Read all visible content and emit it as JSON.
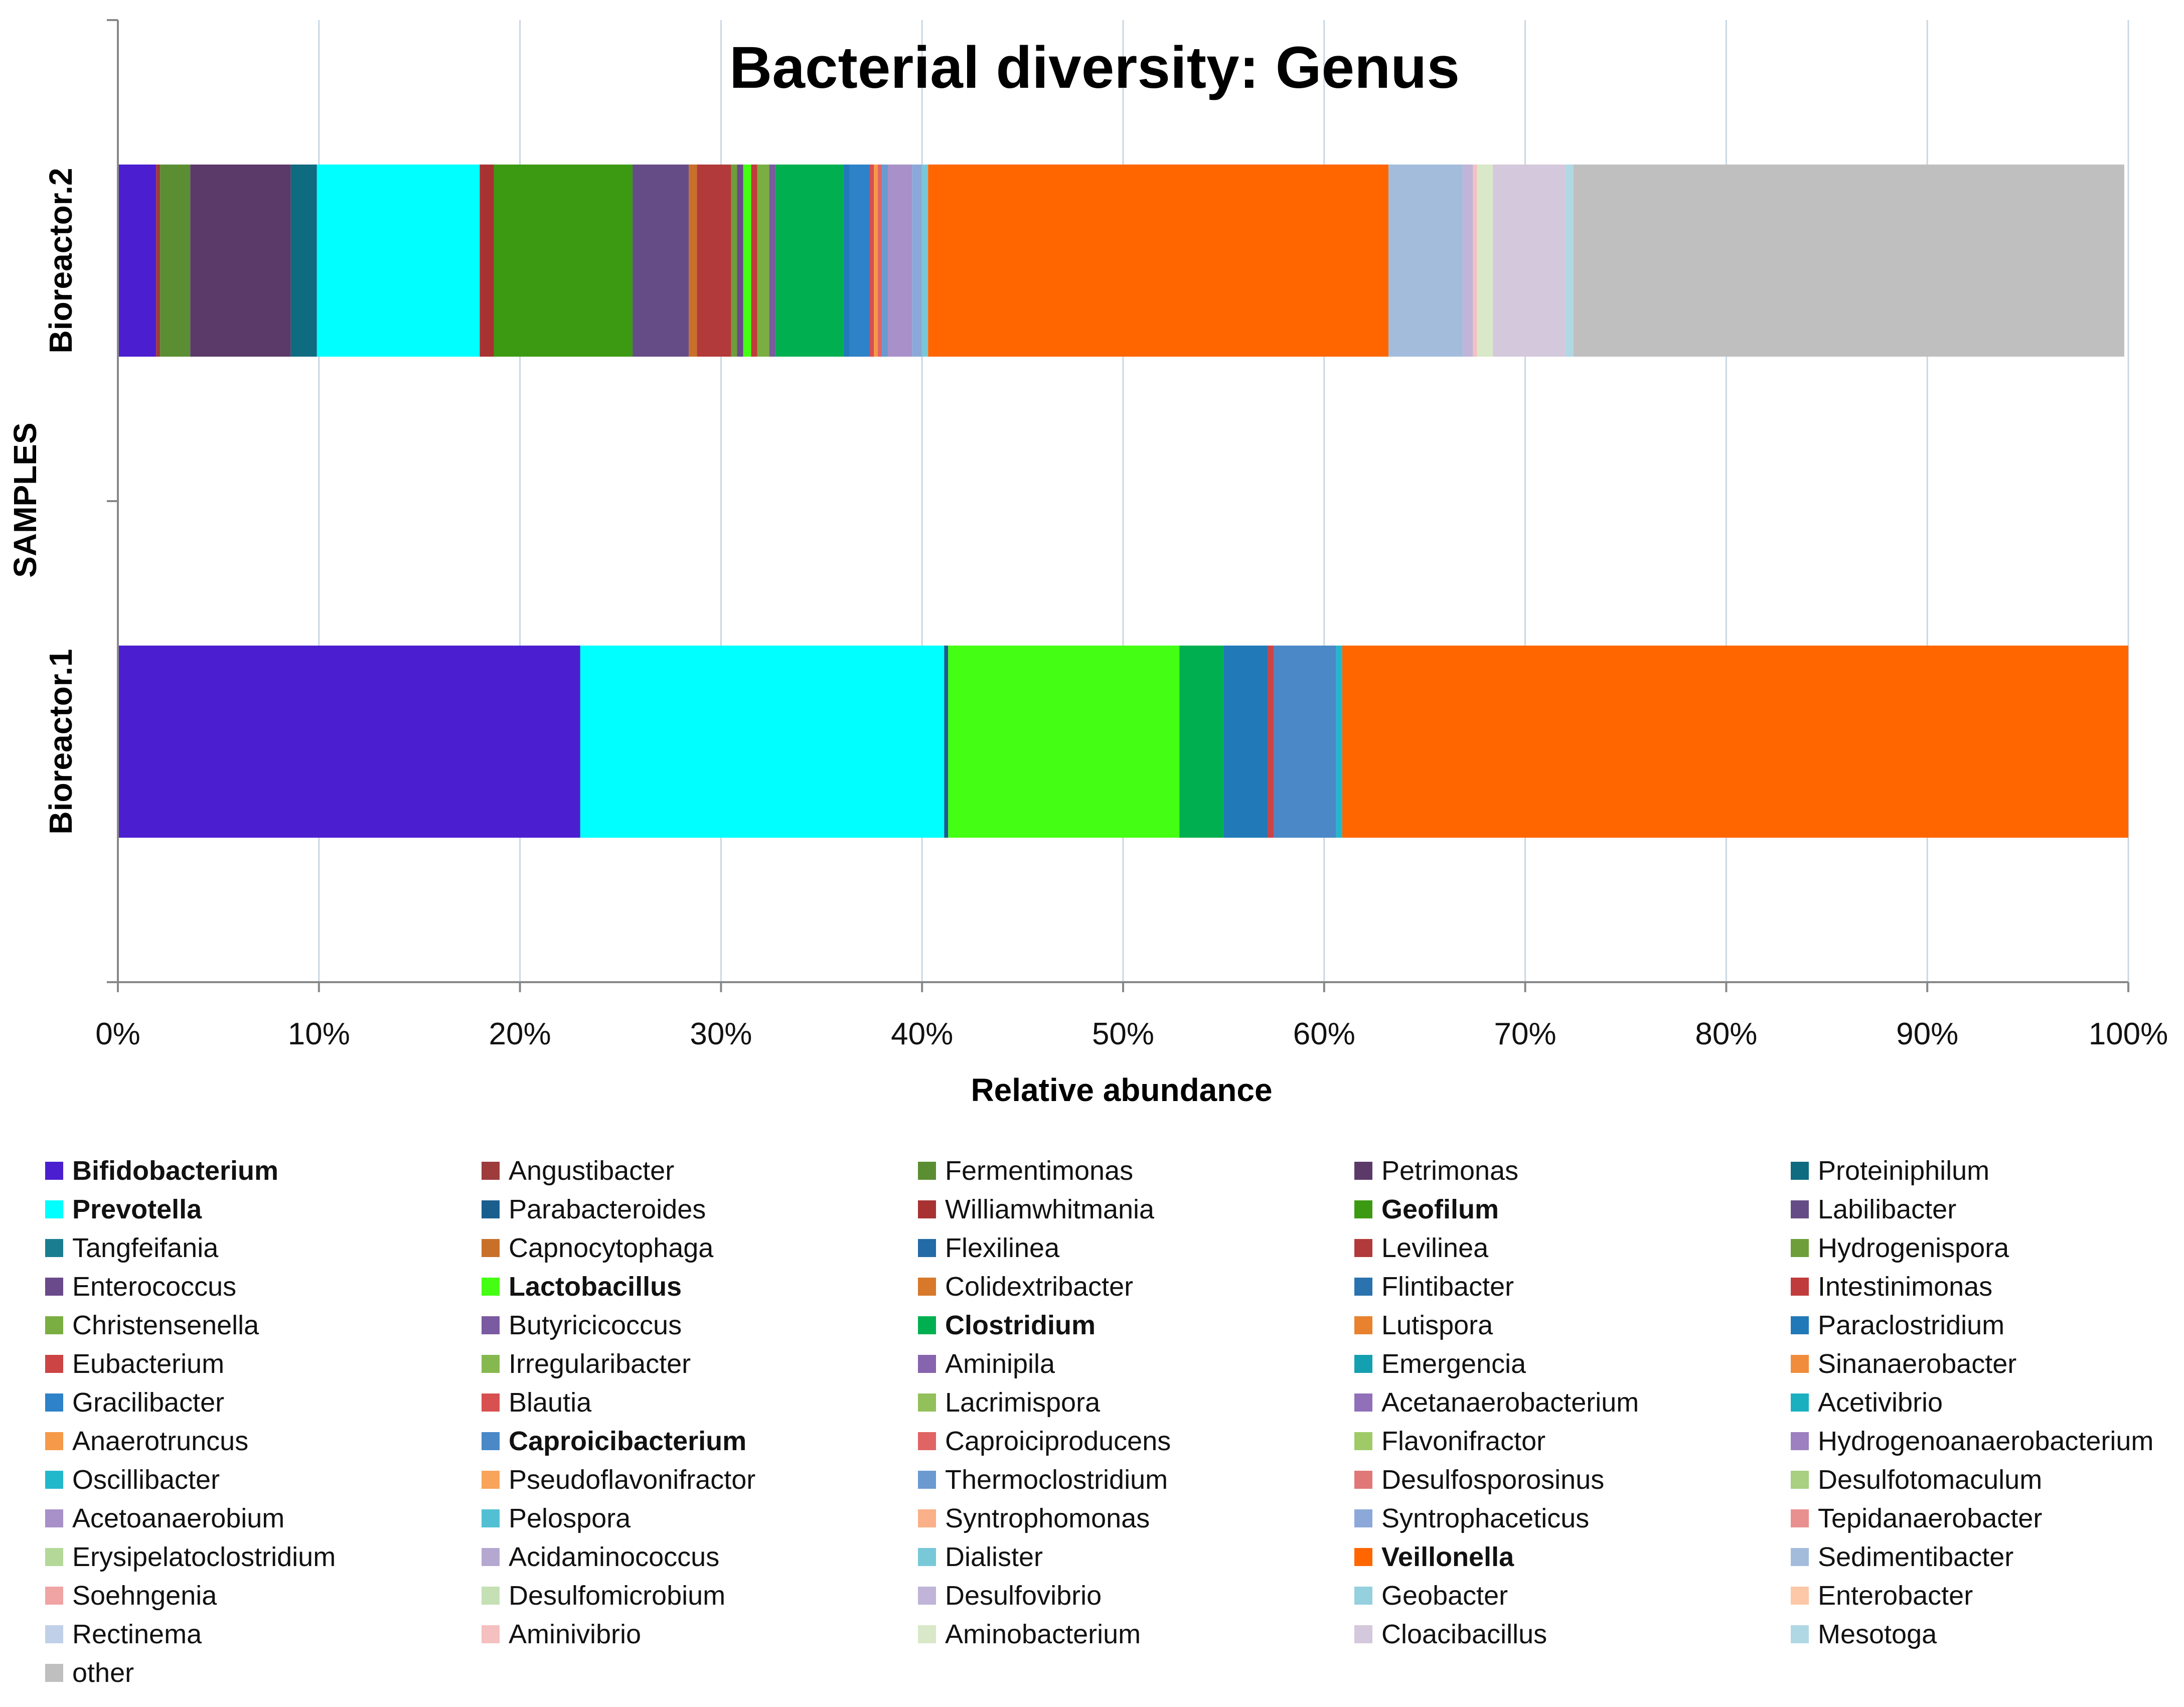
{
  "chart_data": {
    "type": "bar",
    "orientation": "horizontal",
    "stacked": "100%",
    "title": "Bacterial diversity: Genus",
    "xlabel": "Relative abundance",
    "ylabel": "SAMPLES",
    "xlim": [
      0,
      100
    ],
    "x_ticks": [
      "0%",
      "10%",
      "20%",
      "30%",
      "40%",
      "50%",
      "60%",
      "70%",
      "80%",
      "90%",
      "100%"
    ],
    "grid": "vertical",
    "legend_position": "bottom",
    "categories": [
      "Bioreactor.2",
      "Bioreactor.1"
    ],
    "series": [
      {
        "name": "Bifidobacterium",
        "color": "#4B1FD0",
        "bold": true,
        "values": [
          1.9,
          23.0
        ]
      },
      {
        "name": "Angustibacter",
        "color": "#9E3B3B",
        "bold": false,
        "values": [
          0.2,
          0
        ]
      },
      {
        "name": "Fermentimonas",
        "color": "#5B8E32",
        "bold": false,
        "values": [
          1.5,
          0
        ]
      },
      {
        "name": "Petrimonas",
        "color": "#5B3A6A",
        "bold": false,
        "values": [
          5.0,
          0
        ]
      },
      {
        "name": "Proteiniphilum",
        "color": "#0F6B80",
        "bold": false,
        "values": [
          1.3,
          0
        ]
      },
      {
        "name": "Prevotella",
        "color": "#00FFFF",
        "bold": true,
        "values": [
          8.1,
          18.1
        ]
      },
      {
        "name": "Parabacteroides",
        "color": "#1A5E8E",
        "bold": false,
        "values": [
          0,
          0.2
        ]
      },
      {
        "name": "Williamwhitmania",
        "color": "#A83232",
        "bold": false,
        "values": [
          0.7,
          0
        ]
      },
      {
        "name": "Geofilum",
        "color": "#3C9A12",
        "bold": true,
        "values": [
          6.9,
          0
        ]
      },
      {
        "name": "Labilibacter",
        "color": "#664C86",
        "bold": false,
        "values": [
          2.8,
          0
        ]
      },
      {
        "name": "Tangfeifania",
        "color": "#1B7E8E",
        "bold": false,
        "values": [
          0,
          0
        ]
      },
      {
        "name": "Capnocytophaga",
        "color": "#C8702A",
        "bold": false,
        "values": [
          0.4,
          0
        ]
      },
      {
        "name": "Flexilinea",
        "color": "#236BA6",
        "bold": false,
        "values": [
          0,
          0
        ]
      },
      {
        "name": "Levilinea",
        "color": "#B23A3A",
        "bold": false,
        "values": [
          1.7,
          0
        ]
      },
      {
        "name": "Hydrogenispora",
        "color": "#6E9E3A",
        "bold": false,
        "values": [
          0.3,
          0
        ]
      },
      {
        "name": "Enterococcus",
        "color": "#6A4A8A",
        "bold": false,
        "values": [
          0.3,
          0
        ]
      },
      {
        "name": "Lactobacillus",
        "color": "#44FF14",
        "bold": true,
        "values": [
          0.4,
          11.5
        ]
      },
      {
        "name": "Colidextribacter",
        "color": "#D8782A",
        "bold": false,
        "values": [
          0,
          0
        ]
      },
      {
        "name": "Flintibacter",
        "color": "#2A73AE",
        "bold": false,
        "values": [
          0,
          0
        ]
      },
      {
        "name": "Intestinimonas",
        "color": "#C03C3C",
        "bold": false,
        "values": [
          0.3,
          0
        ]
      },
      {
        "name": "Christensenella",
        "color": "#7AAE42",
        "bold": false,
        "values": [
          0.6,
          0
        ]
      },
      {
        "name": "Butyricicoccus",
        "color": "#7A5AA0",
        "bold": false,
        "values": [
          0.3,
          0
        ]
      },
      {
        "name": "Clostridium",
        "color": "#00B050",
        "bold": true,
        "values": [
          3.4,
          2.2
        ]
      },
      {
        "name": "Lutispora",
        "color": "#E8822F",
        "bold": false,
        "values": [
          0,
          0
        ]
      },
      {
        "name": "Paraclostridium",
        "color": "#2279B8",
        "bold": false,
        "values": [
          0.3,
          2.2
        ]
      },
      {
        "name": "Eubacterium",
        "color": "#CC4444",
        "bold": false,
        "values": [
          0,
          0.3
        ]
      },
      {
        "name": "Irregularibacter",
        "color": "#86B850",
        "bold": false,
        "values": [
          0,
          0
        ]
      },
      {
        "name": "Aminipila",
        "color": "#8664AE",
        "bold": false,
        "values": [
          0,
          0
        ]
      },
      {
        "name": "Emergencia",
        "color": "#14A0B0",
        "bold": false,
        "values": [
          0,
          0
        ]
      },
      {
        "name": "Sinanaerobacter",
        "color": "#F08C3C",
        "bold": false,
        "values": [
          0,
          0
        ]
      },
      {
        "name": "Gracilibacter",
        "color": "#2E82C8",
        "bold": false,
        "values": [
          1.0,
          0
        ]
      },
      {
        "name": "Blautia",
        "color": "#D85050",
        "bold": false,
        "values": [
          0.2,
          0
        ]
      },
      {
        "name": "Lacrimispora",
        "color": "#92C05A",
        "bold": false,
        "values": [
          0,
          0
        ]
      },
      {
        "name": "Acetanaerobacterium",
        "color": "#9070B8",
        "bold": false,
        "values": [
          0,
          0
        ]
      },
      {
        "name": "Acetivibrio",
        "color": "#1AB0C0",
        "bold": false,
        "values": [
          0,
          0
        ]
      },
      {
        "name": "Anaerotruncus",
        "color": "#F59A48",
        "bold": false,
        "values": [
          0.2,
          0
        ]
      },
      {
        "name": "Caproicibacterium",
        "color": "#4A88C8",
        "bold": true,
        "values": [
          0,
          3.1
        ]
      },
      {
        "name": "Caproiciproducens",
        "color": "#E06464",
        "bold": false,
        "values": [
          0.2,
          0
        ]
      },
      {
        "name": "Flavonifractor",
        "color": "#A0CA68",
        "bold": false,
        "values": [
          0,
          0
        ]
      },
      {
        "name": "Hydrogenoanaerobacterium",
        "color": "#9C80C0",
        "bold": false,
        "values": [
          0,
          0
        ]
      },
      {
        "name": "Oscillibacter",
        "color": "#22B8CC",
        "bold": false,
        "values": [
          0,
          0.3
        ]
      },
      {
        "name": "Pseudoflavonifractor",
        "color": "#F8A45A",
        "bold": false,
        "values": [
          0,
          0
        ]
      },
      {
        "name": "Thermoclostridium",
        "color": "#6A9AD0",
        "bold": false,
        "values": [
          0.3,
          0
        ]
      },
      {
        "name": "Desulfosporosinus",
        "color": "#E07878",
        "bold": false,
        "values": [
          0,
          0
        ]
      },
      {
        "name": "Desulfotomaculum",
        "color": "#A8D080",
        "bold": false,
        "values": [
          0,
          0
        ]
      },
      {
        "name": "Acetoanaerobium",
        "color": "#A890C8",
        "bold": false,
        "values": [
          1.2,
          0
        ]
      },
      {
        "name": "Pelospora",
        "color": "#52C0D2",
        "bold": false,
        "values": [
          0,
          0
        ]
      },
      {
        "name": "Syntrophomonas",
        "color": "#FAB088",
        "bold": false,
        "values": [
          0,
          0
        ]
      },
      {
        "name": "Syntrophaceticus",
        "color": "#8CA8D8",
        "bold": false,
        "values": [
          0.5,
          0
        ]
      },
      {
        "name": "Tepidanaerobacter",
        "color": "#E89090",
        "bold": false,
        "values": [
          0,
          0
        ]
      },
      {
        "name": "Erysipelatoclostridium",
        "color": "#B4D898",
        "bold": false,
        "values": [
          0,
          0
        ]
      },
      {
        "name": "Acidaminococcus",
        "color": "#B4A8D0",
        "bold": false,
        "values": [
          0,
          0
        ]
      },
      {
        "name": "Dialister",
        "color": "#78C8D8",
        "bold": false,
        "values": [
          0.3,
          0
        ]
      },
      {
        "name": "Veillonella",
        "color": "#FF6600",
        "bold": true,
        "values": [
          22.9,
          39.1
        ]
      },
      {
        "name": "Sedimentibacter",
        "color": "#A4BCDC",
        "bold": false,
        "values": [
          3.7,
          0
        ]
      },
      {
        "name": "Soehngenia",
        "color": "#F0A4A4",
        "bold": false,
        "values": [
          0,
          0
        ]
      },
      {
        "name": "Desulfomicrobium",
        "color": "#C4E0B4",
        "bold": false,
        "values": [
          0,
          0
        ]
      },
      {
        "name": "Desulfovibrio",
        "color": "#C0B4D8",
        "bold": false,
        "values": [
          0.5,
          0
        ]
      },
      {
        "name": "Geobacter",
        "color": "#94D0DE",
        "bold": false,
        "values": [
          0,
          0
        ]
      },
      {
        "name": "Enterobacter",
        "color": "#FCC8A8",
        "bold": false,
        "values": [
          0,
          0
        ]
      },
      {
        "name": "Rectinema",
        "color": "#C0D0E8",
        "bold": false,
        "values": [
          0,
          0
        ]
      },
      {
        "name": "Aminivibrio",
        "color": "#F4C0C0",
        "bold": false,
        "values": [
          0.2,
          0
        ]
      },
      {
        "name": "Aminobacterium",
        "color": "#D8E8C8",
        "bold": false,
        "values": [
          0.8,
          0
        ]
      },
      {
        "name": "Cloacibacillus",
        "color": "#D4C8DC",
        "bold": false,
        "values": [
          3.6,
          0
        ]
      },
      {
        "name": "Mesotoga",
        "color": "#B0D8E4",
        "bold": false,
        "values": [
          0.4,
          0
        ]
      },
      {
        "name": "other",
        "color": "#BFBFBF",
        "bold": false,
        "values": [
          27.4,
          0
        ]
      }
    ]
  }
}
